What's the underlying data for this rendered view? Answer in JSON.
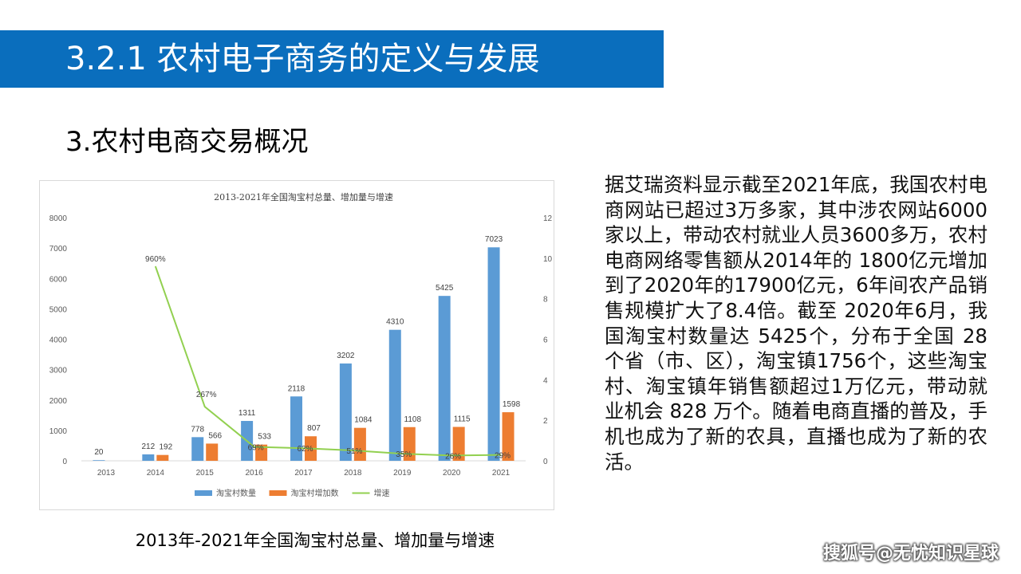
{
  "header": {
    "title": "3.2.1 农村电子商务的定义与发展"
  },
  "section": {
    "title": "3.农村电商交易概况"
  },
  "chart_caption": "2013年-2021年全国淘宝村总量、增加量与增速",
  "paragraph": "据艾瑞资料显示截至2021年底，我国农村电商网站已超过3万多家，其中涉农网站6000家以上，带动农村就业人员3600多万，农村电商网络零售额从2014年的 1800亿元增加到了2020年的17900亿元，6年间农产品销售规模扩大了8.4倍。截至 2020年6月，我国淘宝村数量达 5425个，分布于全国 28 个省（市、区），淘宝镇1756个，这些淘宝村、淘宝镇年销售额超过1万亿元，带动就业机会 828 万个。随着电商直播的普及，手机也成为了新的农具，直播也成为了新的农活。",
  "watermark": "搜狐号@无忧知识星球",
  "chart_data": {
    "type": "bar",
    "title": "2013-2021年全国淘宝村总量、增加量与增速",
    "categories": [
      "2013",
      "2014",
      "2015",
      "2016",
      "2017",
      "2018",
      "2019",
      "2020",
      "2021"
    ],
    "series": [
      {
        "name": "淘宝村数量",
        "kind": "bar",
        "color": "#5b9bd5",
        "values": [
          20,
          212,
          778,
          1311,
          2118,
          3202,
          4310,
          5425,
          7023
        ],
        "labels": [
          "20",
          "212",
          "778",
          "1311",
          "2118",
          "3202",
          "4310",
          "5425",
          "7023"
        ]
      },
      {
        "name": "淘宝村增加数",
        "kind": "bar",
        "color": "#ed7d31",
        "values": [
          null,
          192,
          566,
          533,
          807,
          1084,
          1108,
          1115,
          1598
        ],
        "labels": [
          "",
          "192",
          "566",
          "533",
          "807",
          "1084",
          "1108",
          "1115",
          "1598"
        ]
      },
      {
        "name": "增速",
        "kind": "line",
        "axis": "right",
        "color": "#92d050",
        "values": [
          null,
          9.6,
          2.67,
          0.69,
          0.62,
          0.51,
          0.35,
          0.26,
          0.29
        ],
        "labels": [
          "",
          "960%",
          "267%",
          "69%",
          "62%",
          "51%",
          "35%",
          "26%",
          "29%"
        ]
      }
    ],
    "ylim": [
      0,
      8000
    ],
    "yticks": [
      "0",
      "1000",
      "2000",
      "3000",
      "4000",
      "5000",
      "6000",
      "7000",
      "8000"
    ],
    "y2lim": [
      0,
      12
    ],
    "y2ticks": [
      "0",
      "2",
      "4",
      "6",
      "8",
      "10",
      "12"
    ],
    "grid": false,
    "legend": "bottom"
  }
}
